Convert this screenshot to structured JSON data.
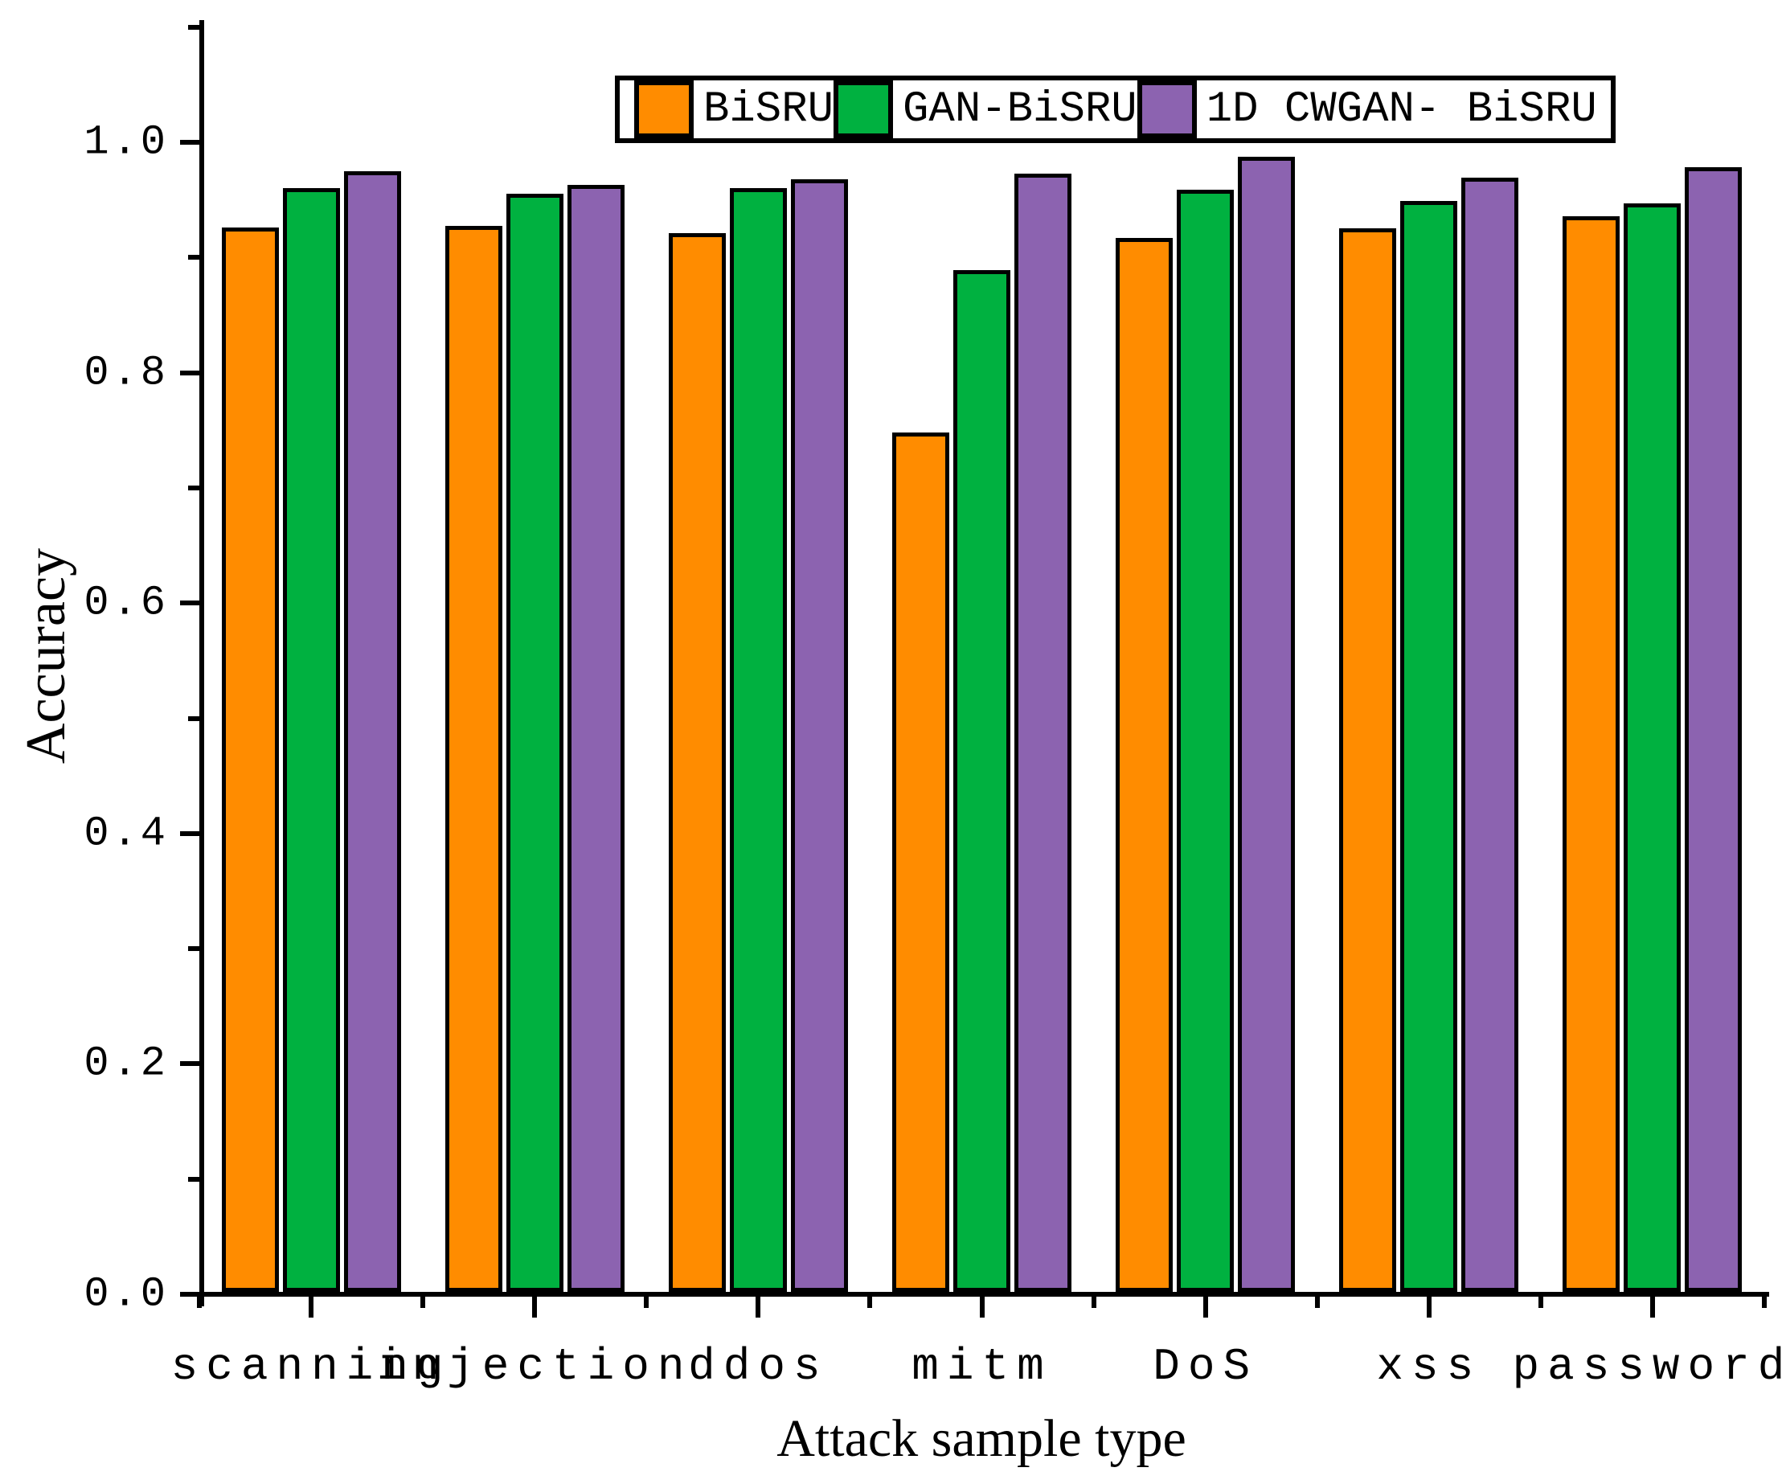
{
  "chart_data": {
    "type": "bar",
    "title": "",
    "categories": [
      "scanning",
      "injection",
      "ddos",
      "mitm",
      "DoS",
      "xss",
      "password"
    ],
    "series": [
      {
        "name": "BiSRU",
        "color": "#FF8C00",
        "values": [
          0.924,
          0.925,
          0.919,
          0.746,
          0.915,
          0.923,
          0.934
        ]
      },
      {
        "name": "GAN-BiSRU",
        "color": "#00B140",
        "values": [
          0.958,
          0.953,
          0.958,
          0.887,
          0.957,
          0.947,
          0.945
        ]
      },
      {
        "name": "1D CWGAN- BiSRU",
        "color": "#8C63B0",
        "values": [
          0.973,
          0.961,
          0.966,
          0.971,
          0.985,
          0.967,
          0.976
        ]
      }
    ],
    "xlabel": "Attack sample type",
    "ylabel": "Accuracy",
    "ylim": [
      0,
      1.1
    ],
    "y_major_ticks": [
      {
        "value": 0.0,
        "label": "0.0"
      },
      {
        "value": 0.2,
        "label": "0.2"
      },
      {
        "value": 0.4,
        "label": "0.4"
      },
      {
        "value": 0.6,
        "label": "0.6"
      },
      {
        "value": 0.8,
        "label": "0.8"
      },
      {
        "value": 1.0,
        "label": "1.0"
      }
    ],
    "y_minor_tick_values": [
      0.1,
      0.3,
      0.5,
      0.7,
      0.9,
      1.1
    ],
    "grid": "off",
    "legend_position": "top-center-inside",
    "bar_edge_color": "#000000",
    "background_color": "#FFFFFF"
  }
}
